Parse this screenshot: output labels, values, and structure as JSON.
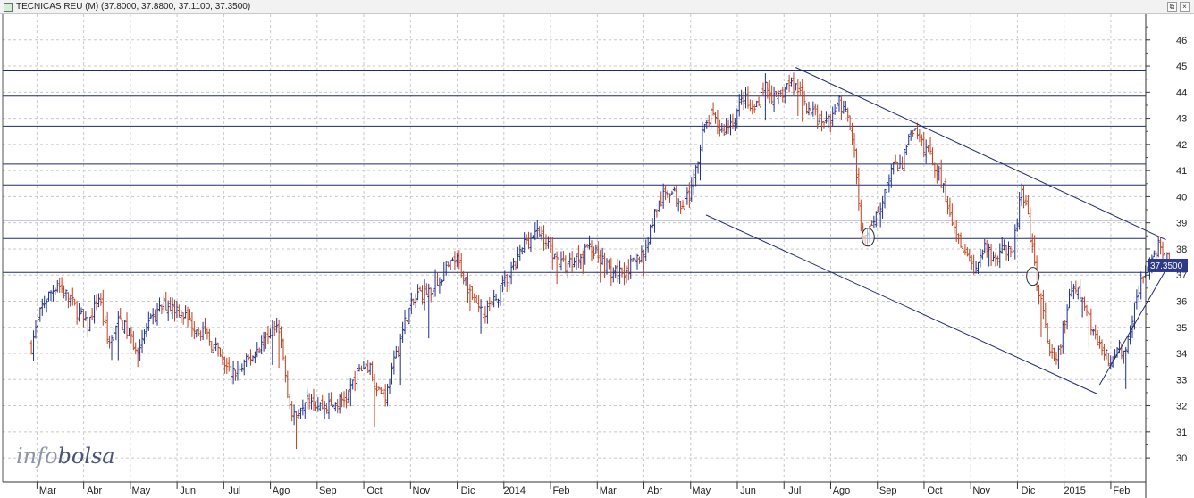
{
  "window": {
    "title": "TECNICAS REU (M) (37.8000, 37.8800, 37.1100, 37.3500)",
    "buttons": {
      "restore_icon": "restore-icon",
      "close_icon": "close-icon"
    }
  },
  "logo": {
    "text_a": "info",
    "text_b": "bolsa"
  },
  "colors": {
    "up": "#1f2f8a",
    "down": "#c0401c",
    "line": "#1f2b6e",
    "grid": "#c8c8c8",
    "label_bg": "#2d3a8c"
  },
  "chart_data": {
    "type": "ohlc",
    "title": "TECNICAS REU (M)",
    "last": {
      "open": 37.8,
      "high": 37.88,
      "low": 37.11,
      "close": 37.35
    },
    "last_price_label": "37.3500",
    "ylim": [
      29,
      46.5
    ],
    "y_ticks": [
      30,
      31,
      32,
      33,
      34,
      35,
      36,
      37,
      38,
      39,
      40,
      41,
      42,
      43,
      44,
      45,
      46
    ],
    "x_labels": [
      "Mar",
      "Abr",
      "May",
      "Jun",
      "Jul",
      "Ago",
      "Sep",
      "Oct",
      "Nov",
      "Dic",
      "2014",
      "Feb",
      "Mar",
      "Abr",
      "May",
      "Jun",
      "Jul",
      "Ago",
      "Sep",
      "Oct",
      "Nov",
      "Dic",
      "2015",
      "Feb"
    ],
    "months_from_start": [
      0,
      1,
      2,
      3,
      4,
      5,
      6,
      7,
      8,
      9,
      10,
      11,
      12,
      13,
      14,
      15,
      16,
      17,
      18,
      19,
      20,
      21,
      22,
      23
    ],
    "grid": true,
    "horizontal_levels": [
      44.85,
      43.85,
      42.7,
      41.25,
      40.45,
      39.1,
      38.4,
      37.1
    ],
    "trendlines": [
      {
        "from": [
          16.02,
          44.95
        ],
        "to": [
          23.95,
          38.35
        ]
      },
      {
        "from": [
          14.1,
          39.3
        ],
        "to": [
          22.48,
          32.45
        ]
      },
      {
        "from": [
          22.53,
          32.8
        ],
        "to": [
          24.03,
          37.45
        ]
      }
    ],
    "ellipses": [
      {
        "x": 17.57,
        "y": 38.45
      },
      {
        "x": 21.1,
        "y": 36.95
      }
    ],
    "price_path": [
      [
        -0.35,
        34.3
      ],
      [
        -0.1,
        35.9
      ],
      [
        0.2,
        36.7
      ],
      [
        0.5,
        36.0
      ],
      [
        0.85,
        35.0
      ],
      [
        1.1,
        36.2
      ],
      [
        1.3,
        34.3
      ],
      [
        1.55,
        35.3
      ],
      [
        1.9,
        34.2
      ],
      [
        2.15,
        35.0
      ],
      [
        2.5,
        35.9
      ],
      [
        2.8,
        35.7
      ],
      [
        3.05,
        35.2
      ],
      [
        3.35,
        34.8
      ],
      [
        3.65,
        34.0
      ],
      [
        3.9,
        33.2
      ],
      [
        4.15,
        33.4
      ],
      [
        4.5,
        34.2
      ],
      [
        4.75,
        34.8
      ],
      [
        4.95,
        35.0
      ],
      [
        5.1,
        33.1
      ],
      [
        5.25,
        31.4
      ],
      [
        5.55,
        32.5
      ],
      [
        5.8,
        32.0
      ],
      [
        6.1,
        32.0
      ],
      [
        6.4,
        32.3
      ],
      [
        6.65,
        33.3
      ],
      [
        6.85,
        33.6
      ],
      [
        7.1,
        32.6
      ],
      [
        7.25,
        32.4
      ],
      [
        7.5,
        34.2
      ],
      [
        7.7,
        35.5
      ],
      [
        7.95,
        36.3
      ],
      [
        8.2,
        36.4
      ],
      [
        8.5,
        37.1
      ],
      [
        8.75,
        37.6
      ],
      [
        9.0,
        36.6
      ],
      [
        9.3,
        35.6
      ],
      [
        9.55,
        35.9
      ],
      [
        9.75,
        36.6
      ],
      [
        10.0,
        37.3
      ],
      [
        10.25,
        38.4
      ],
      [
        10.55,
        38.6
      ],
      [
        10.8,
        37.9
      ],
      [
        11.05,
        37.3
      ],
      [
        11.3,
        37.6
      ],
      [
        11.55,
        38.1
      ],
      [
        11.8,
        37.8
      ],
      [
        12.1,
        37.0
      ],
      [
        12.35,
        37.2
      ],
      [
        12.55,
        37.4
      ],
      [
        12.8,
        38.0
      ],
      [
        13.0,
        39.4
      ],
      [
        13.3,
        40.3
      ],
      [
        13.55,
        39.8
      ],
      [
        13.8,
        40.2
      ],
      [
        14.0,
        42.3
      ],
      [
        14.2,
        43.1
      ],
      [
        14.45,
        42.5
      ],
      [
        14.7,
        43.0
      ],
      [
        14.9,
        43.8
      ],
      [
        15.1,
        43.2
      ],
      [
        15.35,
        44.3
      ],
      [
        15.6,
        43.6
      ],
      [
        15.85,
        44.3
      ],
      [
        16.05,
        44.2
      ],
      [
        16.3,
        43.4
      ],
      [
        16.55,
        42.8
      ],
      [
        16.75,
        43.0
      ],
      [
        16.95,
        43.6
      ],
      [
        17.15,
        43.0
      ],
      [
        17.3,
        41.3
      ],
      [
        17.45,
        38.4
      ],
      [
        17.65,
        38.7
      ],
      [
        17.85,
        39.8
      ],
      [
        18.05,
        41.0
      ],
      [
        18.3,
        41.3
      ],
      [
        18.5,
        42.7
      ],
      [
        18.7,
        42.0
      ],
      [
        18.85,
        41.8
      ],
      [
        19.05,
        41.0
      ],
      [
        19.25,
        40.0
      ],
      [
        19.45,
        38.7
      ],
      [
        19.65,
        38.0
      ],
      [
        19.85,
        37.2
      ],
      [
        20.05,
        38.0
      ],
      [
        20.25,
        37.6
      ],
      [
        20.45,
        38.2
      ],
      [
        20.65,
        37.6
      ],
      [
        20.85,
        40.2
      ],
      [
        21.0,
        39.1
      ],
      [
        21.15,
        37.1
      ],
      [
        21.3,
        35.8
      ],
      [
        21.45,
        34.0
      ],
      [
        21.6,
        33.6
      ],
      [
        21.75,
        35.0
      ],
      [
        21.95,
        36.5
      ],
      [
        22.15,
        36.1
      ],
      [
        22.35,
        35.1
      ],
      [
        22.55,
        34.3
      ],
      [
        22.75,
        33.6
      ],
      [
        22.95,
        34.3
      ],
      [
        23.1,
        33.9
      ],
      [
        23.25,
        35.7
      ],
      [
        23.45,
        36.9
      ],
      [
        23.65,
        37.4
      ],
      [
        23.8,
        38.1
      ],
      [
        23.95,
        37.7
      ],
      [
        24.05,
        37.35
      ]
    ]
  }
}
